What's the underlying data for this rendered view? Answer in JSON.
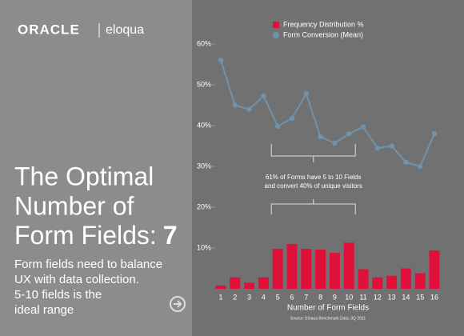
{
  "brand": {
    "oracle": "ORACLE",
    "eloqua": "eloqua"
  },
  "headline": {
    "lines": [
      "The Optimal",
      "Number of",
      "Form Fields:"
    ],
    "highlight": "7"
  },
  "description": [
    "Form fields need to balance",
    "UX with data collection.",
    "5-10 fields is the",
    "ideal range"
  ],
  "chart_data": {
    "type": "bar_line",
    "categories": [
      "1",
      "2",
      "3",
      "4",
      "5",
      "6",
      "7",
      "8",
      "9",
      "10",
      "11",
      "12",
      "13",
      "14",
      "15",
      "16"
    ],
    "series": [
      {
        "name": "Frequency Distribution %",
        "color": "#e0103a",
        "kind": "bar",
        "values": [
          0.8,
          2.8,
          1.5,
          2.8,
          9.8,
          11,
          9.8,
          9.6,
          8.8,
          11.3,
          4.8,
          2.8,
          3.2,
          5.0,
          3.8,
          9.4
        ]
      },
      {
        "name": "Form Conversion (Mean)",
        "color": "#6f93ab",
        "kind": "line",
        "values": [
          56,
          45,
          44,
          47.3,
          39.8,
          41.8,
          47.8,
          37.3,
          35.7,
          38,
          39.7,
          34.5,
          35,
          31,
          30,
          38
        ]
      }
    ],
    "ylim": [
      0,
      60
    ],
    "yticks": [
      {
        "value": 10,
        "label": "10%"
      },
      {
        "value": 20,
        "label": "20%"
      },
      {
        "value": 30,
        "label": "30%"
      },
      {
        "value": 40,
        "label": "40%"
      },
      {
        "value": 50,
        "label": "50%"
      },
      {
        "value": 60,
        "label": "60%"
      }
    ],
    "xlabel": "Number of Form Fields",
    "annotation": [
      "61% of Forms have 5 to 10 Fields",
      "and convert 40% of unique visitors"
    ],
    "source": "Source: Eloqua Benchmark Data, 3Q 2011"
  }
}
